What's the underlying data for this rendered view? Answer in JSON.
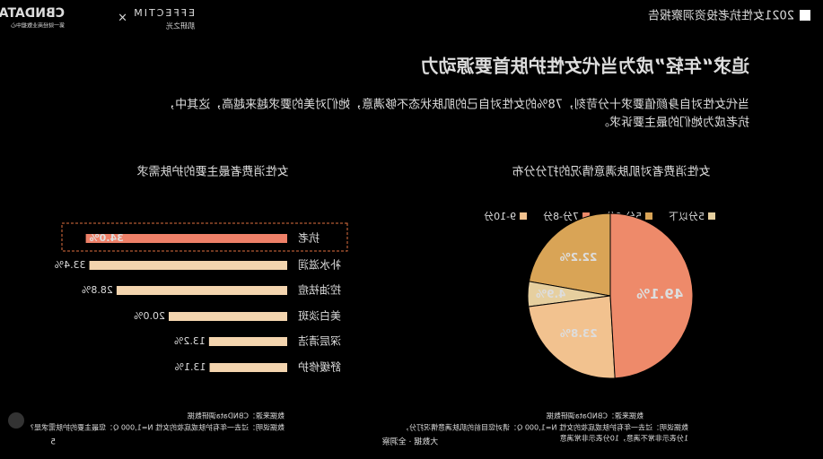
{
  "header": {
    "report": "2021女性抗老投资洞察报告",
    "logo_main": "CBNDATA",
    "logo_sub": "第一财经商业数据中心",
    "logo_times": "×",
    "partner": "EFFECTIM",
    "partner_sub": "肌研之光"
  },
  "title": "追求“年轻”成为当代女性护肤首要源动力",
  "body": [
    "当代女性对自身颜值要求十分苛刻，78%的女性对自己的肌肤状态不够满意，她们对美的要求越来越高，这其中，",
    "抗老成为她们的最主要诉求。"
  ],
  "chart_data": [
    {
      "type": "pie",
      "title": "女性消费者对肌肤满意情况的打分分布",
      "categories": [
        "5分以下",
        "5分-6分",
        "7分-8分",
        "9-10分"
      ],
      "values": [
        4.9,
        22.2,
        49.1,
        23.8
      ],
      "value_labels": [
        "4.9%",
        "22.2%",
        "49.1%",
        "23.8%"
      ],
      "colors": [
        "#e6cf9f",
        "#d9a456",
        "#ee8a6a",
        "#f2c28f"
      ],
      "source": "数据来源：CBNData调研数据",
      "note": [
        "数据说明：过去一年有护肤或底妆的女性 N=1,000 Q：请对您目前的肌肤满意情况打分，",
        "1分表示非常不满意，10分表示非常满意"
      ]
    },
    {
      "type": "hbar",
      "title": "女性消费者最主要的护肤需求",
      "categories": [
        "抗老",
        "补水滋润",
        "控油祛痘",
        "美白淡斑",
        "深层清洁",
        "舒缓修护"
      ],
      "values": [
        34.0,
        33.4,
        28.8,
        20.0,
        13.2,
        13.1
      ],
      "value_labels": [
        "34.0%",
        "33.4%",
        "28.8%",
        "20.0%",
        "13.2%",
        "13.1%"
      ],
      "colors": [
        "#ee8068",
        "#f3d4ae",
        "#f3d4ae",
        "#f3d4ae",
        "#f3d4ae",
        "#f3d4ae"
      ],
      "source": "数据来源：CBNData调研数据",
      "note": [
        "数据说明：过去一年有护肤或底妆的女性 N=1,000 Q：您最主要的护肤需求是?"
      ]
    }
  ],
  "footer": {
    "brand": "大数据 · 全洞察",
    "page": "5"
  }
}
